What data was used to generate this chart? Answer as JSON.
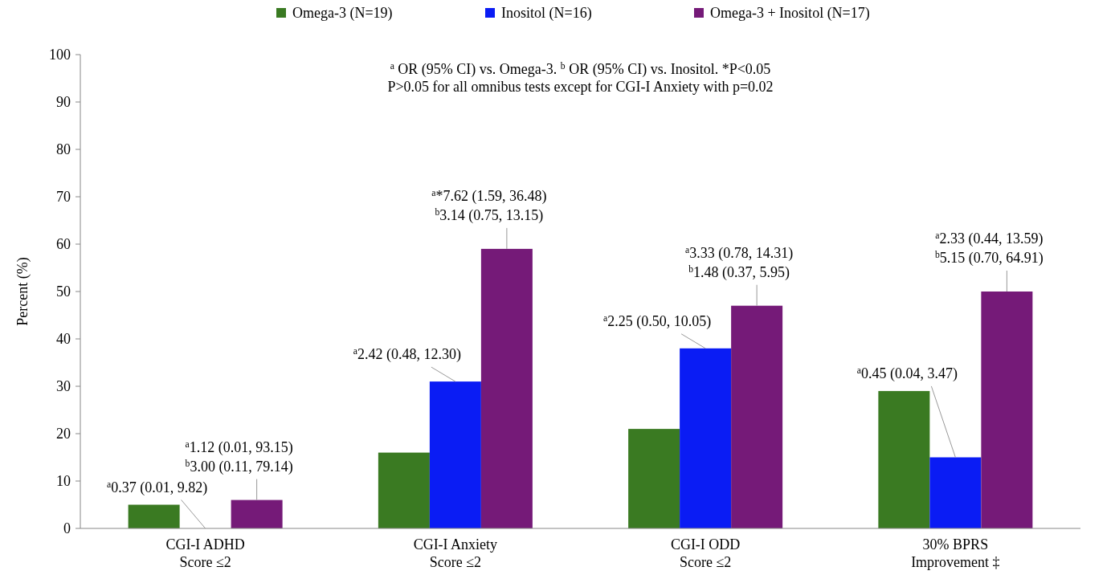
{
  "chart_data": {
    "type": "bar",
    "ylabel": "Percent (%)",
    "categories": [
      "CGI-I ADHD\nScore ≤2",
      "CGI-I Anxiety\nScore ≤2",
      "CGI-I ODD\nScore ≤2",
      "30% BPRS\nImprovement ‡"
    ],
    "series": [
      {
        "name": "Omega-3 (N=19)",
        "color": "#3a7a22",
        "values": [
          5,
          16,
          21,
          29
        ]
      },
      {
        "name": "Inositol (N=16)",
        "color": "#0a1cf4",
        "values": [
          0,
          31,
          38,
          15
        ]
      },
      {
        "name": "Omega-3 + Inositol (N=17)",
        "color": "#751a78",
        "values": [
          6,
          59,
          47,
          50
        ]
      }
    ],
    "ylim": [
      0,
      100
    ],
    "yticks": [
      0,
      10,
      20,
      30,
      40,
      50,
      60,
      70,
      80,
      90,
      100
    ],
    "grid": false,
    "legend": "top",
    "annotations": [
      "$^{a}$ OR (95% CI) vs. Omega-3. $^{b}$ OR (95% CI) vs. Inositol. *P<0.05",
      "P>0.05 for all omnibus tests except for CGI-I Anxiety with p=0.02",
      {
        "text": "$^{a}$0.37 (0.01, 9.82)",
        "x": "CGI-I ADHD\nScore ≤2",
        "y": 0
      },
      "$^{a}$1.12 (0.01, 93.15)",
      "$^{b}$3.00 (0.11, 79.14)",
      {
        "text": "$^{a}$2.42 (0.48, 12.30)",
        "x": "CGI-I Anxiety\nScore ≤2",
        "y": 31
      },
      "$^{a}$*7.62 (1.59, 36.48)",
      "$^{b}$3.14 (0.75, 13.15)",
      {
        "text": "$^{a}$2.25 (0.50, 10.05)",
        "x": "CGI-I ODD\nScore ≤2",
        "y": 38
      },
      "$^{a}$3.33 (0.78, 14.31)",
      "$^{b}$1.48 (0.37, 5.95)",
      {
        "text": "$^{a}$0.45 (0.04, 3.47)",
        "x": "30% BPRS\nImprovement ‡",
        "y": 15
      },
      "$^{a}$2.33 (0.44, 13.59)",
      "$^{b}$5.15 (0.70, 64.91)"
    ]
  }
}
